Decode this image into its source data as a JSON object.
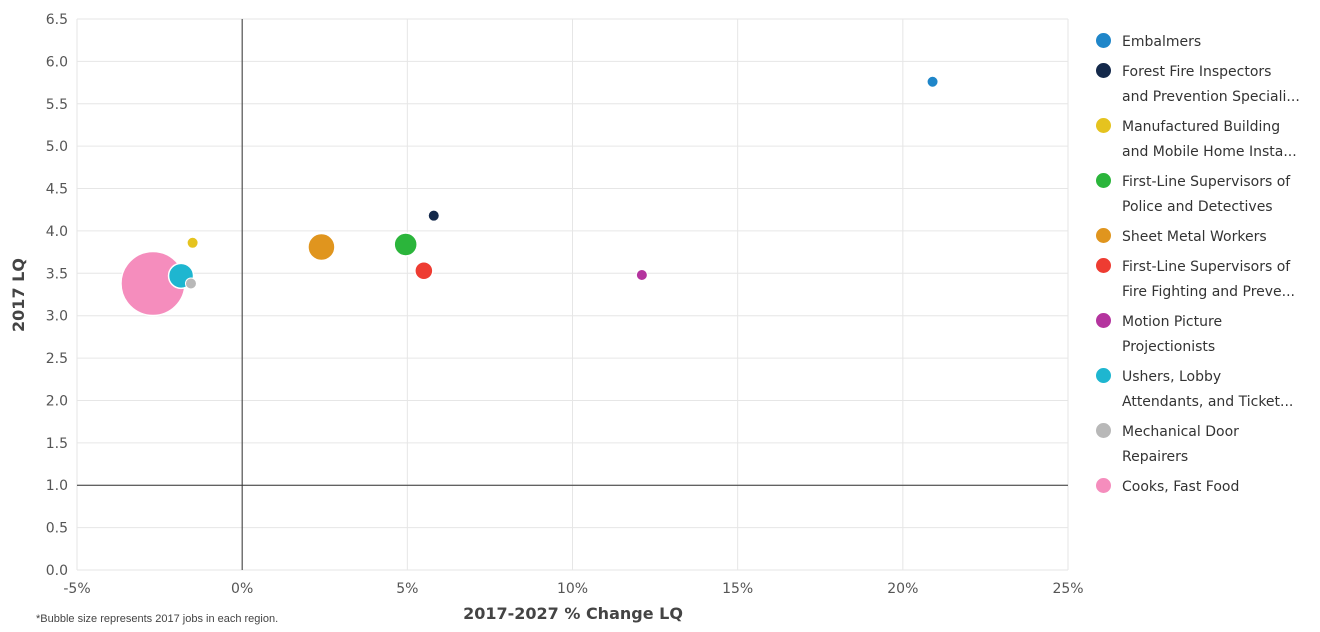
{
  "chart_data": {
    "type": "scatter",
    "title": "",
    "xlabel": "2017-2027 % Change LQ",
    "ylabel": "2017 LQ",
    "xlim": [
      -5,
      25
    ],
    "ylim": [
      0,
      6.5
    ],
    "x_ticks": [
      -5,
      0,
      5,
      10,
      15,
      20,
      25
    ],
    "x_tick_labels": [
      "-5%",
      "0%",
      "5%",
      "10%",
      "15%",
      "20%",
      "25%"
    ],
    "y_ticks": [
      0,
      0.5,
      1,
      1.5,
      2,
      2.5,
      3,
      3.5,
      4,
      4.5,
      5,
      5.5,
      6,
      6.5
    ],
    "y_tick_labels": [
      "0.0",
      "0.5",
      "1.0",
      "1.5",
      "2.0",
      "2.5",
      "3.0",
      "3.5",
      "4.0",
      "4.5",
      "5.0",
      "5.5",
      "6.0",
      "6.5"
    ],
    "reference_lines": {
      "x": 0,
      "y": 1.0
    },
    "grid": true,
    "legend_position": "right",
    "bubble_note": "*Bubble size represents 2017 jobs in each region.",
    "series": [
      {
        "name": "Embalmers",
        "legend_lines": [
          "Embalmers"
        ],
        "color": "#1f86c9",
        "x": 20.9,
        "y": 5.76,
        "size": 11
      },
      {
        "name": "Forest Fire Inspectors and Prevention Speciali...",
        "legend_lines": [
          "Forest Fire Inspectors",
          "and Prevention Speciali..."
        ],
        "color": "#14294b",
        "x": 5.8,
        "y": 4.18,
        "size": 11
      },
      {
        "name": "Manufactured Building and Mobile Home Insta...",
        "legend_lines": [
          "Manufactured Building",
          "and Mobile Home Insta..."
        ],
        "color": "#e5c31f",
        "x": -1.5,
        "y": 3.86,
        "size": 11
      },
      {
        "name": "First-Line Supervisors of Police and Detectives",
        "legend_lines": [
          "First-Line Supervisors of",
          "Police and Detectives"
        ],
        "color": "#2bb53b",
        "x": 4.95,
        "y": 3.84,
        "size": 23
      },
      {
        "name": "Sheet Metal Workers",
        "legend_lines": [
          "Sheet Metal Workers"
        ],
        "color": "#e0951e",
        "x": 2.4,
        "y": 3.81,
        "size": 27
      },
      {
        "name": "First-Line Supervisors of Fire Fighting and Preve...",
        "legend_lines": [
          "First-Line Supervisors of",
          "Fire Fighting and Preve..."
        ],
        "color": "#ee3c32",
        "x": 5.5,
        "y": 3.53,
        "size": 18
      },
      {
        "name": "Motion Picture Projectionists",
        "legend_lines": [
          "Motion Picture",
          "Projectionists"
        ],
        "color": "#b4349e",
        "x": 12.1,
        "y": 3.48,
        "size": 11
      },
      {
        "name": "Ushers, Lobby Attendants, and Ticket...",
        "legend_lines": [
          "Ushers, Lobby",
          "Attendants, and Ticket..."
        ],
        "color": "#1eb6d0",
        "x": -1.85,
        "y": 3.47,
        "size": 25
      },
      {
        "name": "Mechanical Door Repairers",
        "legend_lines": [
          "Mechanical Door",
          "Repairers"
        ],
        "color": "#b8b8b8",
        "x": -1.55,
        "y": 3.38,
        "size": 11
      },
      {
        "name": "Cooks, Fast Food",
        "legend_lines": [
          "Cooks, Fast Food"
        ],
        "color": "#f58dbd",
        "x": -2.7,
        "y": 3.38,
        "size": 64
      }
    ]
  }
}
